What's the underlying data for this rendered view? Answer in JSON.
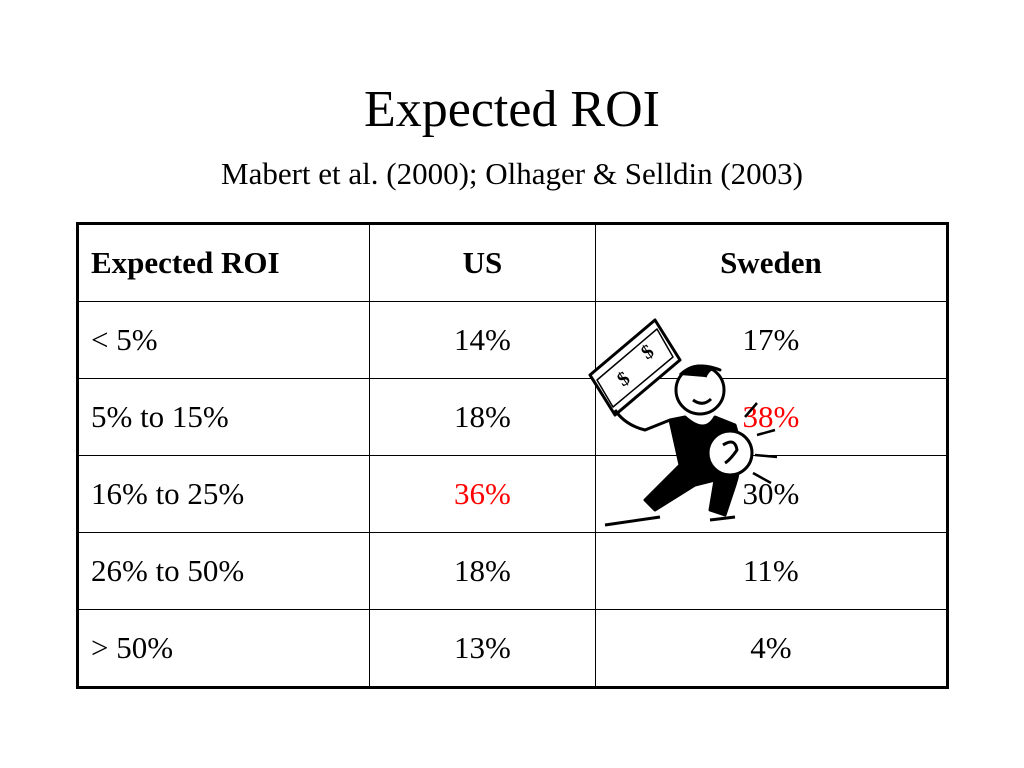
{
  "title": "Expected ROI",
  "subtitle": "Mabert et al. (2000); Olhager & Selldin (2003)",
  "table": {
    "header": [
      "Expected ROI",
      "US",
      "Sweden"
    ],
    "rows": [
      [
        "< 5%",
        "14%",
        "17%"
      ],
      [
        "5% to 15%",
        "18%",
        "38%"
      ],
      [
        "16% to 25%",
        "36%",
        "30%"
      ],
      [
        "26% to 50%",
        "18%",
        "11%"
      ],
      [
        "> 50%",
        "13%",
        "4%"
      ]
    ]
  }
}
